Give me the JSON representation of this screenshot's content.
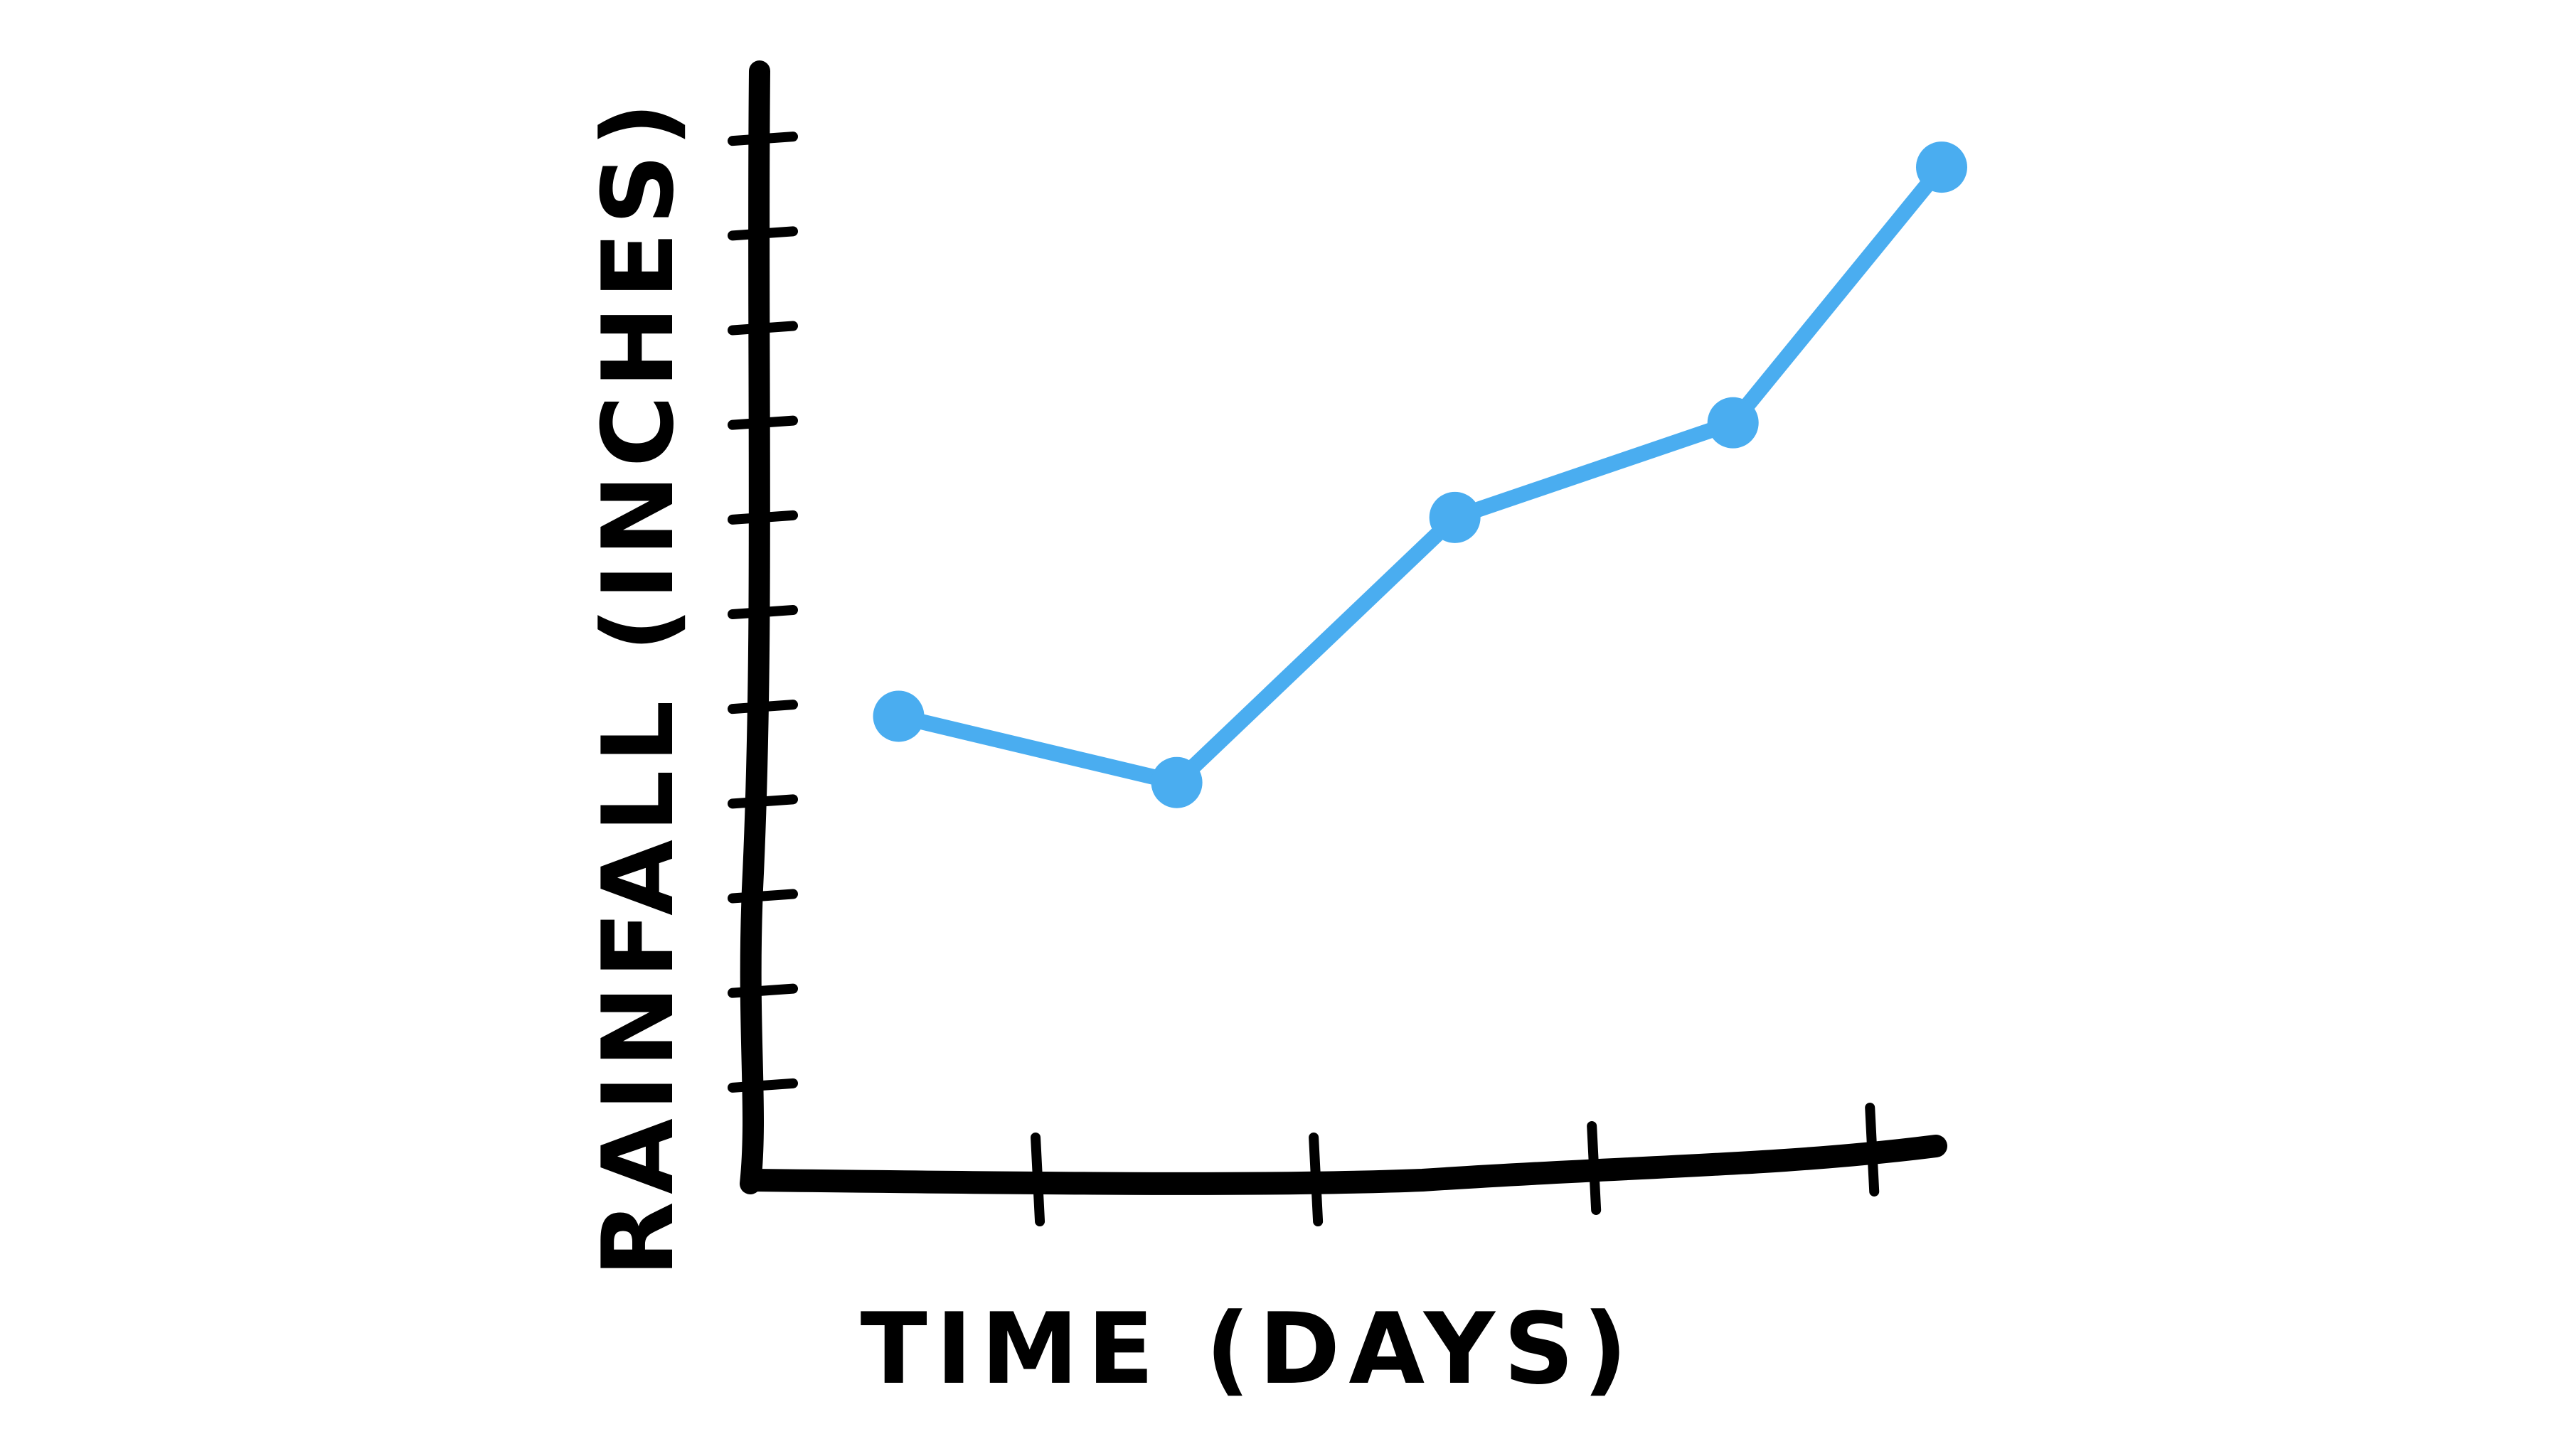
{
  "chart_data": {
    "type": "line",
    "title": "",
    "xlabel": "TIME (DAYS)",
    "ylabel": "RAINFALL (INCHES)",
    "grid": false,
    "legend": "none",
    "x": [
      0.5,
      1.5,
      2.5,
      3.5,
      4.25
    ],
    "series": [
      {
        "values": [
          4.9,
          4.2,
          7.0,
          8.0,
          10.7
        ]
      }
    ],
    "xlim": [
      0,
      4.25
    ],
    "ylim": [
      0,
      12
    ],
    "colors": {
      "line": "#4AADF0",
      "axis": "#000000"
    }
  }
}
